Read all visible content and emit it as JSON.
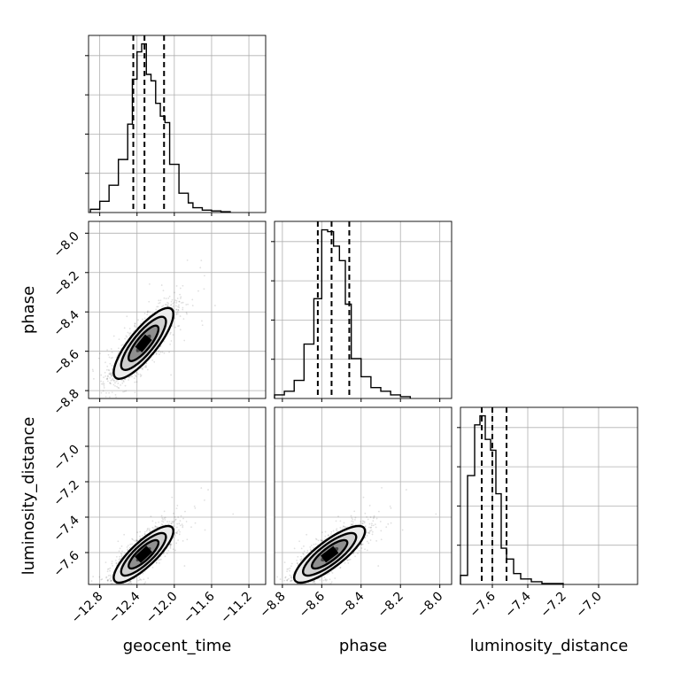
{
  "chart_data": {
    "type": "corner",
    "parameters": [
      "geocent_time",
      "phase",
      "luminosity_distance"
    ],
    "axis_labels": {
      "bottom": [
        "geocent_time",
        "phase",
        "luminosity_distance"
      ],
      "left": [
        "phase",
        "luminosity_distance"
      ]
    },
    "ranges": {
      "geocent_time": [
        -12.92,
        -11.02
      ],
      "phase": [
        -8.84,
        -7.94
      ],
      "luminosity_distance": [
        -7.78,
        -6.78
      ]
    },
    "ticks": {
      "geocent_time": {
        "values": [
          -12.8,
          -12.4,
          -12.0,
          -11.6,
          -11.2
        ],
        "labels": [
          "−12.8",
          "−12.4",
          "−12.0",
          "−11.6",
          "−11.2"
        ]
      },
      "phase": {
        "values": [
          -8.8,
          -8.6,
          -8.4,
          -8.2,
          -8.0
        ],
        "labels": [
          "−8.8",
          "−8.6",
          "−8.4",
          "−8.2",
          "−8.0"
        ]
      },
      "luminosity_distance": {
        "values": [
          -7.6,
          -7.4,
          -7.2,
          -7.0
        ],
        "labels": [
          "−7.6",
          "−7.4",
          "−7.2",
          "−7.0"
        ]
      },
      "luminosity_distance_left": {
        "values": [
          -7.6,
          -7.4,
          -7.2,
          -7.0
        ],
        "labels": [
          "−7.6",
          "−7.4",
          "−7.2",
          "−7.0"
        ]
      }
    },
    "histograms": {
      "geocent_time": {
        "bin_edges": [
          -12.9,
          -12.8,
          -12.7,
          -12.6,
          -12.5,
          -12.45,
          -12.4,
          -12.35,
          -12.3,
          -12.25,
          -12.2,
          -12.15,
          -12.1,
          -12.05,
          -12.0,
          -11.95,
          -11.9,
          -11.85,
          -11.8,
          -11.7,
          -11.6,
          -11.5,
          -11.4
        ],
        "counts": [
          0.02,
          0.07,
          0.17,
          0.33,
          0.55,
          0.83,
          1.0,
          1.05,
          0.86,
          0.82,
          0.68,
          0.6,
          0.56,
          0.3,
          0.3,
          0.12,
          0.12,
          0.06,
          0.03,
          0.015,
          0.01,
          0.005
        ]
      },
      "phase": {
        "bin_edges": [
          -8.84,
          -8.79,
          -8.74,
          -8.69,
          -8.64,
          -8.6,
          -8.57,
          -8.54,
          -8.51,
          -8.48,
          -8.45,
          -8.4,
          -8.35,
          -8.3,
          -8.25,
          -8.2,
          -8.15
        ],
        "counts": [
          0.02,
          0.04,
          0.1,
          0.3,
          0.55,
          0.93,
          0.92,
          0.84,
          0.76,
          0.52,
          0.22,
          0.12,
          0.06,
          0.04,
          0.02,
          0.01
        ]
      },
      "luminosity_distance": {
        "bin_edges": [
          -7.78,
          -7.74,
          -7.7,
          -7.67,
          -7.64,
          -7.61,
          -7.58,
          -7.55,
          -7.52,
          -7.48,
          -7.44,
          -7.38,
          -7.32,
          -7.2
        ],
        "counts": [
          0.05,
          0.6,
          0.88,
          0.93,
          0.8,
          0.74,
          0.5,
          0.2,
          0.14,
          0.06,
          0.03,
          0.015,
          0.005
        ]
      }
    },
    "quantiles": {
      "geocent_time": [
        -12.44,
        -12.32,
        -12.11
      ],
      "phase": [
        -8.62,
        -8.55,
        -8.46
      ],
      "luminosity_distance": [
        -7.66,
        -7.6,
        -7.52
      ]
    },
    "pairs": [
      {
        "x": "geocent_time",
        "y": "phase",
        "mean": [
          -12.33,
          -8.56
        ],
        "sd": [
          0.16,
          0.09
        ],
        "corr": 0.82
      },
      {
        "x": "geocent_time",
        "y": "luminosity_distance",
        "mean": [
          -12.33,
          -7.61
        ],
        "sd": [
          0.16,
          0.08
        ],
        "corr": 0.82
      },
      {
        "x": "phase",
        "y": "luminosity_distance",
        "mean": [
          -8.56,
          -7.61
        ],
        "sd": [
          0.09,
          0.08
        ],
        "corr": 0.82
      }
    ],
    "grid": true
  }
}
